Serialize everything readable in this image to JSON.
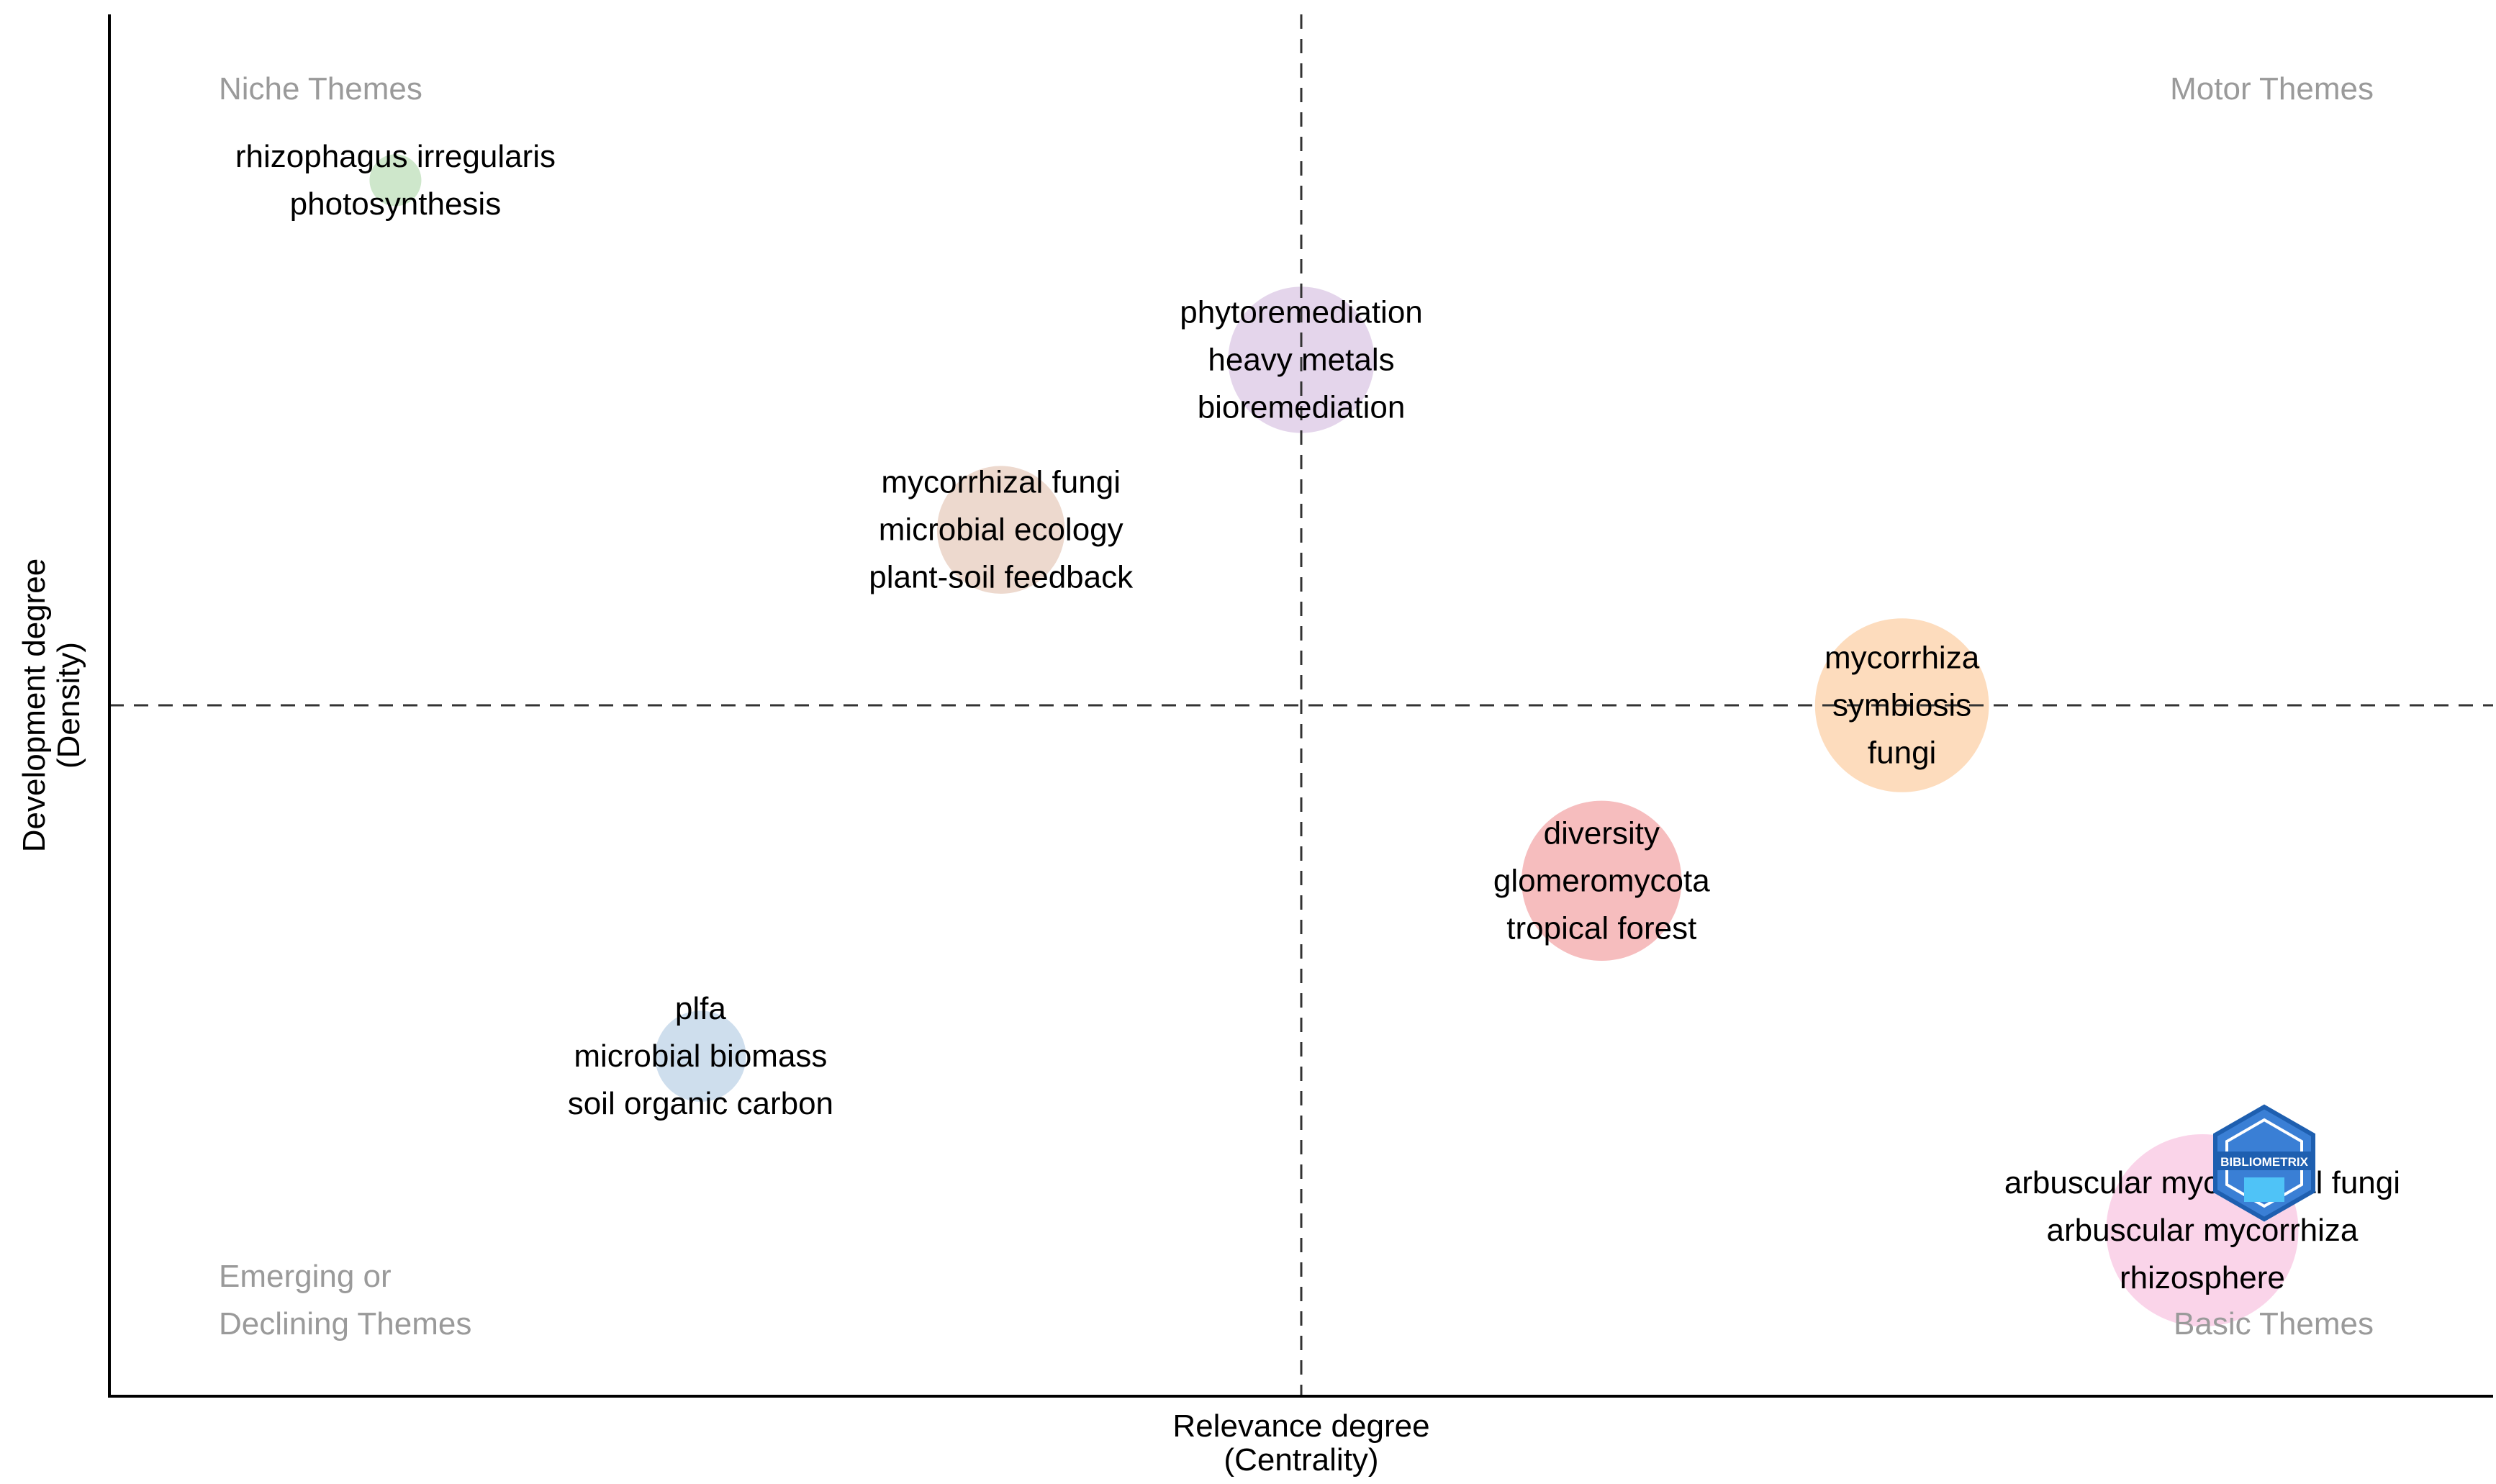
{
  "chart_data": {
    "type": "scatter",
    "title": "",
    "xlabel": "Relevance degree",
    "xlabel_sub": "(Centrality)",
    "ylabel": "Development degree",
    "ylabel_sub": "(Density)",
    "xlim": [
      0,
      1
    ],
    "ylim": [
      0,
      1
    ],
    "x_center": 0.5,
    "y_center": 0.5,
    "grid": false,
    "quadrants": {
      "top_left": [
        "Niche Themes"
      ],
      "top_right": [
        "Motor Themes"
      ],
      "bottom_left": [
        "Emerging or",
        "Declining Themes"
      ],
      "bottom_right": [
        "Basic Themes"
      ]
    },
    "clusters": [
      {
        "labels": [
          "rhizophagus irregularis",
          "photosynthesis"
        ],
        "x": 0.12,
        "y": 0.88,
        "size": 0.05,
        "color": "#c2e1be"
      },
      {
        "labels": [
          "phytoremediation",
          "heavy metals",
          "bioremediation"
        ],
        "x": 0.5,
        "y": 0.75,
        "size": 0.46,
        "color": "#ddcbe6"
      },
      {
        "labels": [
          "mycorrhizal fungi",
          "microbial ecology",
          "plant-soil feedback"
        ],
        "x": 0.374,
        "y": 0.627,
        "size": 0.38,
        "color": "#e9cfc2"
      },
      {
        "labels": [
          "mycorrhiza",
          "symbiosis",
          "fungi"
        ],
        "x": 0.752,
        "y": 0.5,
        "size": 0.58,
        "color": "#fdd3ac"
      },
      {
        "labels": [
          "diversity",
          "glomeromycota",
          "tropical forest"
        ],
        "x": 0.626,
        "y": 0.373,
        "size": 0.52,
        "color": "#f4adae"
      },
      {
        "labels": [
          "plfa",
          "microbial biomass",
          "soil organic carbon"
        ],
        "x": 0.248,
        "y": 0.246,
        "size": 0.22,
        "color": "#c2d6e9"
      },
      {
        "labels": [
          "arbuscular mycorrhizal fungi",
          "arbuscular mycorrhiza",
          "rhizosphere"
        ],
        "x": 0.878,
        "y": 0.12,
        "size": 0.66,
        "color": "#f9c9e3"
      }
    ]
  },
  "logo": {
    "text": "BIBLIOMETRIX",
    "color": "#2f6fc0"
  }
}
